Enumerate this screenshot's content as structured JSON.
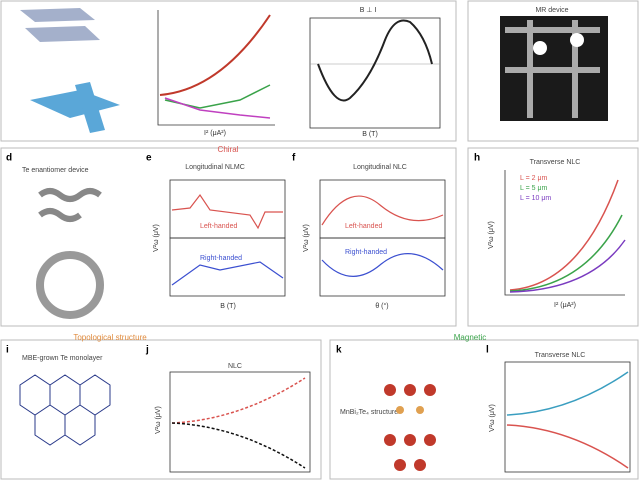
{
  "sections": {
    "top": "Chiral",
    "bottom_left": "Topological structure",
    "bottom_right": "Magnetic"
  },
  "panels": {
    "c": {
      "header": "B ⊥ I",
      "x_label": "B (T)"
    },
    "b": {
      "x_label": "I² (μA²)"
    },
    "g": {
      "title": "MR device"
    },
    "d": {
      "letter": "d",
      "title": "Te enantiomer device"
    },
    "e": {
      "letter": "e",
      "title": "Longitudinal NLMC",
      "top_label": "Left-handed",
      "bottom_label": "Right-handed",
      "x_label": "B (T)",
      "y_label": "V²ω (μV)"
    },
    "f": {
      "letter": "f",
      "title": "Longitudinal NLC",
      "top_label": "Left-handed",
      "bottom_label": "Right-handed",
      "x_label": "θ (°)",
      "y_label": "V²ω (μV)"
    },
    "h": {
      "letter": "h",
      "title": "Transverse NLC",
      "legend": [
        "L = 2 μm",
        "L = 5 μm",
        "L = 10 μm"
      ],
      "x_label": "I² (μA²)",
      "y_label": "V²ω (μV)"
    },
    "i": {
      "letter": "i",
      "title": "MBE-grown Te monolayer"
    },
    "j": {
      "letter": "j",
      "title": "NLC",
      "y_label": "V²ω (μV)"
    },
    "k": {
      "letter": "k",
      "title": "MnBi₂Te₄ structure"
    },
    "l": {
      "letter": "l",
      "title": "Transverse NLC",
      "y_label": "V²ω (μV)"
    }
  }
}
